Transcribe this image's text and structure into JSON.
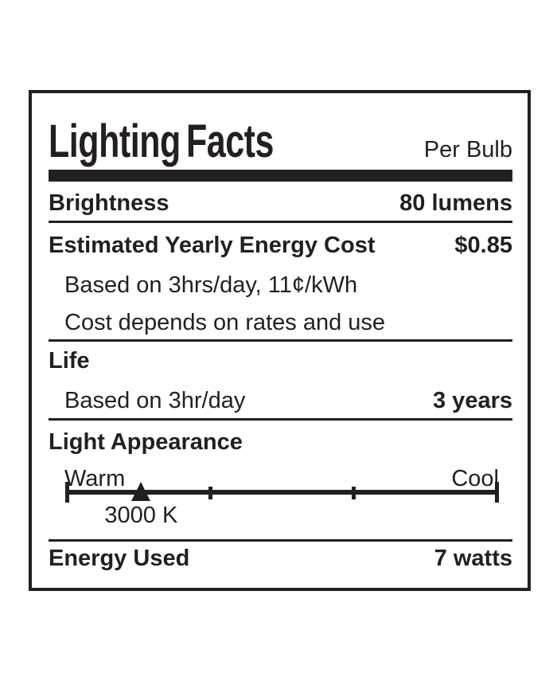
{
  "label": {
    "title": "Lighting Facts",
    "per_unit": "Per Bulb",
    "colors": {
      "ink": "#231f20",
      "background": "#ffffff"
    },
    "brightness": {
      "label": "Brightness",
      "value": "80 lumens"
    },
    "energy_cost": {
      "label": "Estimated Yearly Energy Cost",
      "value": "$0.85",
      "note_basis": "Based on 3hrs/day, 11¢/kWh",
      "note_rates": "Cost depends on rates and use"
    },
    "life": {
      "label": "Life",
      "note": "Based on 3hr/day",
      "value": "3 years"
    },
    "light_appearance": {
      "label": "Light Appearance",
      "scale_left": "Warm",
      "scale_right": "Cool",
      "marker_value": "3000 K",
      "marker_position_pct": 17.5,
      "tick_positions_pct": [
        0,
        33.33,
        66.67,
        100
      ]
    },
    "energy_used": {
      "label": "Energy Used",
      "value": "7 watts"
    }
  }
}
